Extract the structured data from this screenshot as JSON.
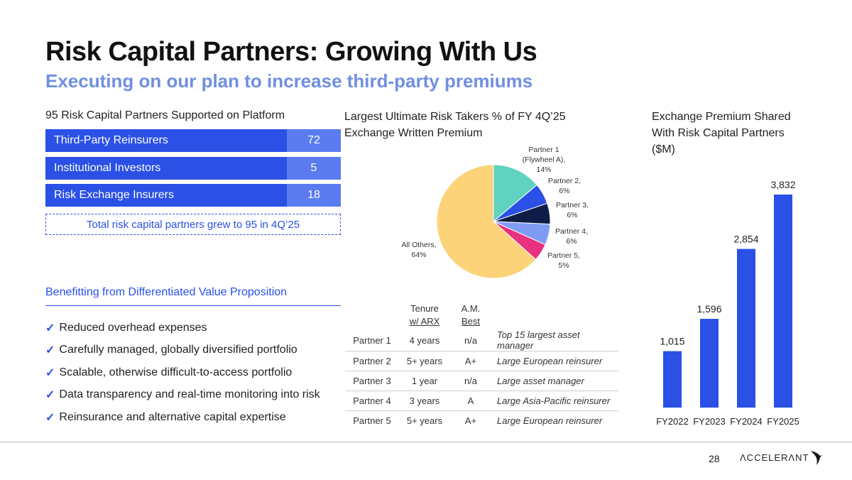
{
  "header": {
    "title": "Risk Capital Partners: Growing With Us",
    "subtitle": "Executing on our plan to increase third-party premiums"
  },
  "partners": {
    "heading": "95 Risk Capital Partners Supported on Platform",
    "bars": [
      {
        "label": "Third-Party Reinsurers",
        "value": "72"
      },
      {
        "label": "Institutional Investors",
        "value": "5"
      },
      {
        "label": "Risk Exchange Insurers",
        "value": "18"
      }
    ],
    "total_note": "Total risk capital partners grew to 95 in 4Q’25"
  },
  "benefits": {
    "heading": "Benefitting from Differentiated Value Proposition",
    "check_glyph": "✓",
    "items": [
      "Reduced overhead expenses",
      "Carefully managed, globally diversified portfolio",
      "Scalable, otherwise difficult-to-access portfolio",
      "Data transparency and real-time monitoring into risk",
      "Reinsurance and alternative capital expertise"
    ]
  },
  "partner_table": {
    "headers": {
      "tenure_line1": "Tenure",
      "tenure_line2": "w/ ARX",
      "am_line1": "A.M.",
      "am_line2": "Best"
    },
    "rows": [
      {
        "partner": "Partner 1",
        "tenure": "4 years",
        "rating": "n/a",
        "desc": "Top 15 largest asset manager"
      },
      {
        "partner": "Partner 2",
        "tenure": "5+ years",
        "rating": "A+",
        "desc": "Large European reinsurer"
      },
      {
        "partner": "Partner 3",
        "tenure": "1 year",
        "rating": "n/a",
        "desc": "Large asset manager"
      },
      {
        "partner": "Partner 4",
        "tenure": "3 years",
        "rating": "A",
        "desc": "Large Asia-Pacific reinsurer"
      },
      {
        "partner": "Partner 5",
        "tenure": "5+ years",
        "rating": "A+",
        "desc": "Large European reinsurer"
      }
    ]
  },
  "chart_data": [
    {
      "type": "pie",
      "title": "Largest Ultimate Risk Takers % of FY 4Q’25 Exchange Written Premium",
      "slices": [
        {
          "label_lines": [
            "Partner 1",
            "(Flywheel A),",
            "14%"
          ],
          "name": "Partner 1 (Flywheel A)",
          "value": 14,
          "color": "#5fd3c0"
        },
        {
          "label_lines": [
            "Partner 2,",
            "6%"
          ],
          "name": "Partner 2",
          "value": 6,
          "color": "#2a50e6"
        },
        {
          "label_lines": [
            "Partner 3,",
            "6%"
          ],
          "name": "Partner 3",
          "value": 6,
          "color": "#0f1c45"
        },
        {
          "label_lines": [
            "Partner 4,",
            "6%"
          ],
          "name": "Partner 4",
          "value": 6,
          "color": "#7f9cf5"
        },
        {
          "label_lines": [
            "Partner 5,",
            "5%"
          ],
          "name": "Partner 5",
          "value": 5,
          "color": "#e8317f"
        },
        {
          "label_lines": [
            "All Others,",
            "64%"
          ],
          "name": "All Others",
          "value": 64,
          "color": "#fdd37a"
        }
      ]
    },
    {
      "type": "bar",
      "title": "Exchange Premium Shared With Risk Capital Partners ($M)",
      "categories": [
        "FY2022",
        "FY2023",
        "FY2024",
        "FY2025"
      ],
      "values": [
        1015,
        1596,
        2854,
        3832
      ],
      "value_labels": [
        "1,015",
        "1,596",
        "2,854",
        "3,832"
      ],
      "ylim": [
        0,
        3832
      ],
      "color": "#2a50e6"
    }
  ],
  "footer": {
    "page_number": "28",
    "logo_text": "ΛCCELERΛNT"
  }
}
